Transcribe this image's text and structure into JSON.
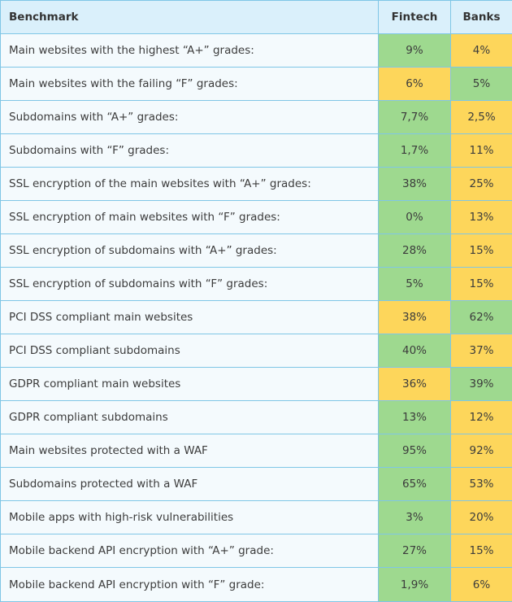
{
  "colors": {
    "green": "#9ed98f",
    "yellow": "#fdd65b",
    "header_bg": "#daf0fb",
    "border": "#7fc6e6",
    "label_bg": "#f4fafd"
  },
  "chart_data": {
    "type": "table",
    "columns": [
      "Benchmark",
      "Fintech",
      "Banks"
    ],
    "rows": [
      {
        "benchmark": "Main websites with the highest “A+” grades:",
        "fintech": "9%",
        "banks": "4%",
        "fintech_color": "green",
        "banks_color": "yellow"
      },
      {
        "benchmark": "Main websites with the failing “F” grades:",
        "fintech": "6%",
        "banks": "5%",
        "fintech_color": "yellow",
        "banks_color": "green"
      },
      {
        "benchmark": "Subdomains with “A+” grades:",
        "fintech": "7,7%",
        "banks": "2,5%",
        "fintech_color": "green",
        "banks_color": "yellow"
      },
      {
        "benchmark": "Subdomains with “F” grades:",
        "fintech": "1,7%",
        "banks": "11%",
        "fintech_color": "green",
        "banks_color": "yellow"
      },
      {
        "benchmark": "SSL encryption of the main websites with “A+” grades:",
        "fintech": "38%",
        "banks": "25%",
        "fintech_color": "green",
        "banks_color": "yellow"
      },
      {
        "benchmark": "SSL encryption of main websites with “F” grades:",
        "fintech": "0%",
        "banks": "13%",
        "fintech_color": "green",
        "banks_color": "yellow"
      },
      {
        "benchmark": "SSL encryption of subdomains with “A+” grades:",
        "fintech": "28%",
        "banks": "15%",
        "fintech_color": "green",
        "banks_color": "yellow"
      },
      {
        "benchmark": "SSL encryption of subdomains with “F” grades:",
        "fintech": "5%",
        "banks": "15%",
        "fintech_color": "green",
        "banks_color": "yellow"
      },
      {
        "benchmark": "PCI DSS compliant main websites",
        "fintech": "38%",
        "banks": "62%",
        "fintech_color": "yellow",
        "banks_color": "green"
      },
      {
        "benchmark": "PCI DSS compliant subdomains",
        "fintech": "40%",
        "banks": "37%",
        "fintech_color": "green",
        "banks_color": "yellow"
      },
      {
        "benchmark": "GDPR compliant main websites",
        "fintech": "36%",
        "banks": "39%",
        "fintech_color": "yellow",
        "banks_color": "green"
      },
      {
        "benchmark": "GDPR compliant subdomains",
        "fintech": "13%",
        "banks": "12%",
        "fintech_color": "green",
        "banks_color": "yellow"
      },
      {
        "benchmark": "Main websites protected with a WAF",
        "fintech": "95%",
        "banks": "92%",
        "fintech_color": "green",
        "banks_color": "yellow"
      },
      {
        "benchmark": "Subdomains protected with a WAF",
        "fintech": "65%",
        "banks": "53%",
        "fintech_color": "green",
        "banks_color": "yellow"
      },
      {
        "benchmark": "Mobile apps with high-risk vulnerabilities",
        "fintech": "3%",
        "banks": "20%",
        "fintech_color": "green",
        "banks_color": "yellow"
      },
      {
        "benchmark": "Mobile backend API encryption with “A+” grade:",
        "fintech": "27%",
        "banks": "15%",
        "fintech_color": "green",
        "banks_color": "yellow"
      },
      {
        "benchmark": "Mobile backend API encryption with “F” grade:",
        "fintech": "1,9%",
        "banks": "6%",
        "fintech_color": "green",
        "banks_color": "yellow"
      }
    ]
  }
}
